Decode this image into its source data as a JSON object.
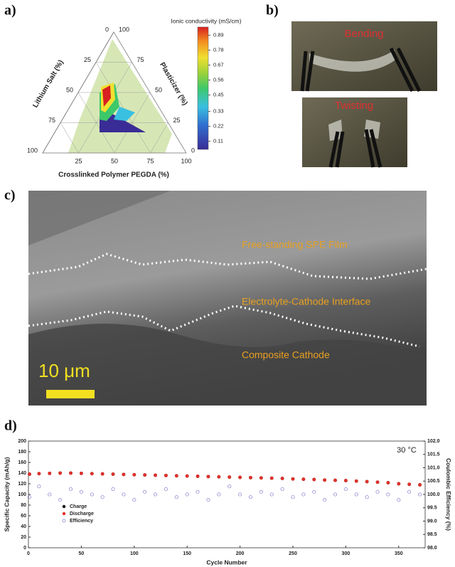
{
  "panels": {
    "a": {
      "label": "a)"
    },
    "b": {
      "label": "b)",
      "photo_1": "Bending",
      "photo_2": "Twisting"
    },
    "c": {
      "label": "c)",
      "layer_1": "Free-standing SPE Film",
      "layer_2": "Electrolyte-Cathode Interface",
      "layer_3": "Composite Cathode",
      "scale_bar": "10 μm"
    },
    "d": {
      "label": "d)"
    }
  },
  "chart_data": [
    {
      "type": "ternary",
      "axes": [
        {
          "label": "Lithium Salt (%)",
          "ticks": [
            0,
            25,
            50,
            75,
            100
          ]
        },
        {
          "label": "Plasticizer (%)",
          "ticks": [
            0,
            25,
            50,
            75,
            100
          ]
        },
        {
          "label": "Crosslinked Polymer PEGDA (%)",
          "ticks": [
            25,
            50,
            75,
            100
          ]
        }
      ],
      "colorbar": {
        "label": "Ionic conductivity (mS/cm)",
        "clim": [
          0.05,
          0.95
        ],
        "ticks": [
          0.11,
          0.22,
          0.33,
          0.45,
          0.56,
          0.67,
          0.78,
          0.89
        ]
      }
    },
    {
      "type": "scatter",
      "xlabel": "Cycle Number",
      "ylabel": "Specific Capacity (mAh/g)",
      "y2label": "Coulombic Efficiency (%)",
      "annotation": "30 °C",
      "xlim": [
        0,
        375
      ],
      "xticks": [
        0,
        50,
        100,
        150,
        200,
        250,
        300,
        350
      ],
      "ylim": [
        0,
        200
      ],
      "yticks": [
        0,
        20,
        40,
        60,
        80,
        100,
        120,
        140,
        160,
        180,
        200
      ],
      "y2lim": [
        98,
        102
      ],
      "y2ticks": [
        {
          "value": 98,
          "label": "98.0"
        },
        98.5,
        {
          "value": 99,
          "label": "99.0"
        },
        99.5,
        {
          "value": 100,
          "label": "100.0"
        },
        100.5,
        {
          "value": 101,
          "label": "101.0"
        },
        101.5,
        {
          "value": 102,
          "label": "102.0"
        }
      ],
      "legend": "lower left",
      "x": [
        1,
        10,
        20,
        30,
        40,
        50,
        60,
        70,
        80,
        90,
        100,
        110,
        120,
        130,
        140,
        150,
        160,
        170,
        180,
        190,
        200,
        210,
        220,
        230,
        240,
        250,
        260,
        270,
        280,
        290,
        300,
        310,
        320,
        330,
        340,
        350,
        360,
        370
      ],
      "series": [
        {
          "name": "Charge",
          "color": "#111111",
          "values": [
            138,
            139,
            139.5,
            140,
            140,
            139.5,
            139,
            138.5,
            138,
            137.5,
            137,
            136.5,
            136,
            135.5,
            135,
            134.5,
            134,
            133.5,
            133,
            132.5,
            132,
            131.5,
            131,
            130.5,
            130,
            129,
            128.5,
            128,
            127,
            126.5,
            126,
            125,
            124,
            123,
            122,
            120,
            119,
            118
          ]
        },
        {
          "name": "Discharge",
          "color": "#e0302a",
          "values": [
            138,
            139,
            139.5,
            140,
            140,
            139.5,
            139,
            138.5,
            138,
            137.5,
            137,
            136.5,
            136,
            135.5,
            135,
            134.5,
            134,
            133.5,
            133,
            132.5,
            132,
            131.5,
            131,
            130.5,
            130,
            129,
            128.5,
            128,
            127,
            126.5,
            126,
            125,
            124,
            123,
            122,
            120,
            119,
            118
          ]
        },
        {
          "name": "Efficiency",
          "color": "#7a78c8",
          "axis": "y2",
          "values": [
            99.9,
            100.3,
            100.0,
            99.8,
            100.2,
            100.1,
            100.0,
            99.9,
            100.2,
            100.0,
            99.8,
            100.1,
            100.0,
            100.2,
            99.9,
            100.0,
            100.1,
            99.8,
            100.0,
            100.3,
            100.0,
            99.9,
            100.1,
            100.0,
            100.2,
            99.9,
            100.0,
            100.1,
            99.8,
            100.0,
            100.2,
            100.0,
            99.9,
            100.1,
            100.0,
            99.8,
            100.1,
            100.0
          ]
        }
      ]
    }
  ]
}
